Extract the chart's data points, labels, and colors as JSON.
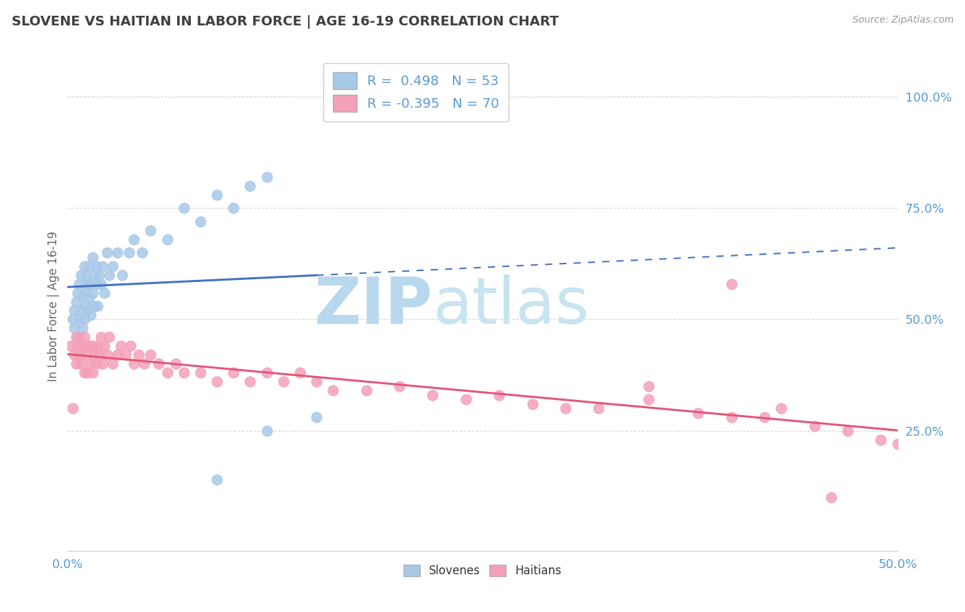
{
  "title": "SLOVENE VS HAITIAN IN LABOR FORCE | AGE 16-19 CORRELATION CHART",
  "source_text": "Source: ZipAtlas.com",
  "ylabel": "In Labor Force | Age 16-19",
  "ytick_vals": [
    0.25,
    0.5,
    0.75,
    1.0
  ],
  "ytick_labels": [
    "25.0%",
    "50.0%",
    "75.0%",
    "100.0%"
  ],
  "xrange": [
    0.0,
    0.5
  ],
  "yrange": [
    -0.02,
    1.08
  ],
  "slovene_color": "#a8c8e8",
  "haitian_color": "#f4a0b8",
  "trend_slovene_color": "#4472c4",
  "trend_haitian_color": "#e05878",
  "watermark_zip": "ZIP",
  "watermark_atlas": "atlas",
  "watermark_color": "#c8e4f0",
  "background_color": "#ffffff",
  "grid_color": "#d8d8d8",
  "tick_color": "#5b9bd5",
  "slovene_x": [
    0.003,
    0.004,
    0.004,
    0.005,
    0.006,
    0.006,
    0.007,
    0.007,
    0.008,
    0.008,
    0.009,
    0.009,
    0.01,
    0.01,
    0.01,
    0.011,
    0.011,
    0.012,
    0.012,
    0.013,
    0.013,
    0.014,
    0.014,
    0.015,
    0.015,
    0.016,
    0.016,
    0.017,
    0.018,
    0.018,
    0.019,
    0.02,
    0.021,
    0.022,
    0.024,
    0.025,
    0.027,
    0.03,
    0.033,
    0.037,
    0.04,
    0.045,
    0.05,
    0.06,
    0.07,
    0.08,
    0.09,
    0.1,
    0.11,
    0.12,
    0.09,
    0.12,
    0.15
  ],
  "slovene_y": [
    0.5,
    0.52,
    0.48,
    0.54,
    0.56,
    0.46,
    0.58,
    0.5,
    0.6,
    0.52,
    0.55,
    0.48,
    0.62,
    0.56,
    0.5,
    0.6,
    0.53,
    0.58,
    0.52,
    0.62,
    0.55,
    0.58,
    0.51,
    0.64,
    0.56,
    0.6,
    0.53,
    0.62,
    0.58,
    0.53,
    0.6,
    0.58,
    0.62,
    0.56,
    0.65,
    0.6,
    0.62,
    0.65,
    0.6,
    0.65,
    0.68,
    0.65,
    0.7,
    0.68,
    0.75,
    0.72,
    0.78,
    0.75,
    0.8,
    0.82,
    0.14,
    0.25,
    0.28
  ],
  "haitian_x": [
    0.002,
    0.003,
    0.004,
    0.005,
    0.005,
    0.006,
    0.007,
    0.008,
    0.008,
    0.009,
    0.01,
    0.01,
    0.011,
    0.012,
    0.012,
    0.013,
    0.014,
    0.015,
    0.015,
    0.016,
    0.017,
    0.018,
    0.019,
    0.02,
    0.021,
    0.022,
    0.024,
    0.025,
    0.027,
    0.03,
    0.032,
    0.035,
    0.038,
    0.04,
    0.043,
    0.046,
    0.05,
    0.055,
    0.06,
    0.065,
    0.07,
    0.08,
    0.09,
    0.1,
    0.11,
    0.12,
    0.13,
    0.14,
    0.15,
    0.16,
    0.18,
    0.2,
    0.22,
    0.24,
    0.26,
    0.28,
    0.3,
    0.32,
    0.35,
    0.38,
    0.4,
    0.42,
    0.45,
    0.47,
    0.49,
    0.5,
    0.35,
    0.4,
    0.43,
    0.46
  ],
  "haitian_y": [
    0.44,
    0.3,
    0.42,
    0.46,
    0.4,
    0.44,
    0.42,
    0.44,
    0.4,
    0.42,
    0.46,
    0.38,
    0.44,
    0.42,
    0.38,
    0.44,
    0.4,
    0.44,
    0.38,
    0.42,
    0.4,
    0.44,
    0.42,
    0.46,
    0.4,
    0.44,
    0.42,
    0.46,
    0.4,
    0.42,
    0.44,
    0.42,
    0.44,
    0.4,
    0.42,
    0.4,
    0.42,
    0.4,
    0.38,
    0.4,
    0.38,
    0.38,
    0.36,
    0.38,
    0.36,
    0.38,
    0.36,
    0.38,
    0.36,
    0.34,
    0.34,
    0.35,
    0.33,
    0.32,
    0.33,
    0.31,
    0.3,
    0.3,
    0.32,
    0.29,
    0.28,
    0.28,
    0.26,
    0.25,
    0.23,
    0.22,
    0.35,
    0.58,
    0.3,
    0.1
  ]
}
